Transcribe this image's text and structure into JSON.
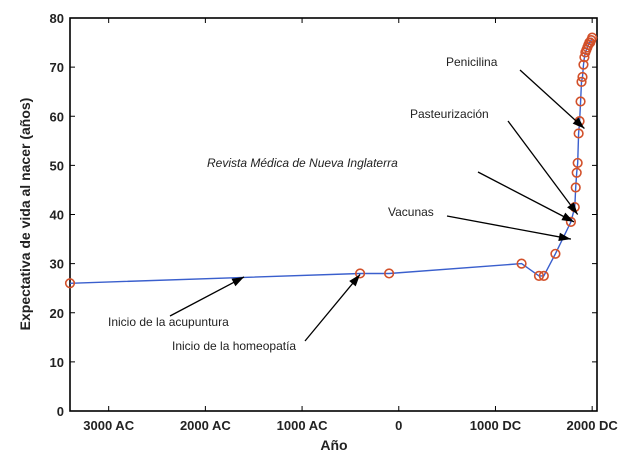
{
  "chart_data": {
    "type": "line",
    "xlabel": "Año",
    "ylabel": "Expectativa de vida al nacer (años)",
    "xlim": [
      -3400,
      2050
    ],
    "ylim": [
      0,
      80
    ],
    "x_ticks": [
      {
        "value": -3000,
        "label": "3000 AC"
      },
      {
        "value": -2000,
        "label": "2000 AC"
      },
      {
        "value": -1000,
        "label": "1000 AC"
      },
      {
        "value": 0,
        "label": "0"
      },
      {
        "value": 1000,
        "label": "1000 DC"
      },
      {
        "value": 2000,
        "label": "2000 DC"
      }
    ],
    "y_ticks": [
      0,
      10,
      20,
      30,
      40,
      50,
      60,
      70,
      80
    ],
    "series": [
      {
        "line_color": "#3a5fcd",
        "marker_color": "#d2502a",
        "x": [
          -3400,
          -400,
          -100,
          1270,
          1450,
          1500,
          1620,
          1780,
          1820,
          1830,
          1840,
          1850,
          1860,
          1870,
          1880,
          1890,
          1900,
          1910,
          1920,
          1930,
          1940,
          1950,
          1960,
          1970,
          1980,
          1990,
          2000
        ],
        "y": [
          26,
          28,
          28,
          30,
          27.5,
          27.5,
          32,
          38.5,
          41.5,
          45.5,
          48.5,
          50.5,
          56.5,
          59,
          63,
          67,
          68,
          70.5,
          72,
          73,
          73.5,
          74,
          74.5,
          75,
          75,
          75.5,
          76
        ]
      }
    ],
    "annotations": [
      {
        "text": "Inicio de la acupuntura",
        "x": -1600,
        "y": 27.3,
        "italic": false
      },
      {
        "text": "Inicio de la homeopatía",
        "x": -400,
        "y": 27.8,
        "italic": false
      },
      {
        "text": "Vacunas",
        "x": 1780,
        "y": 35,
        "italic": false
      },
      {
        "text": "Revista Médica de Nueva Inglaterra",
        "x": 1812,
        "y": 38.5,
        "italic": true
      },
      {
        "text": "Pasteurización",
        "x": 1850,
        "y": 40,
        "italic": false
      },
      {
        "text": "Penicilina",
        "x": 1920,
        "y": 57.5,
        "italic": false
      }
    ]
  }
}
